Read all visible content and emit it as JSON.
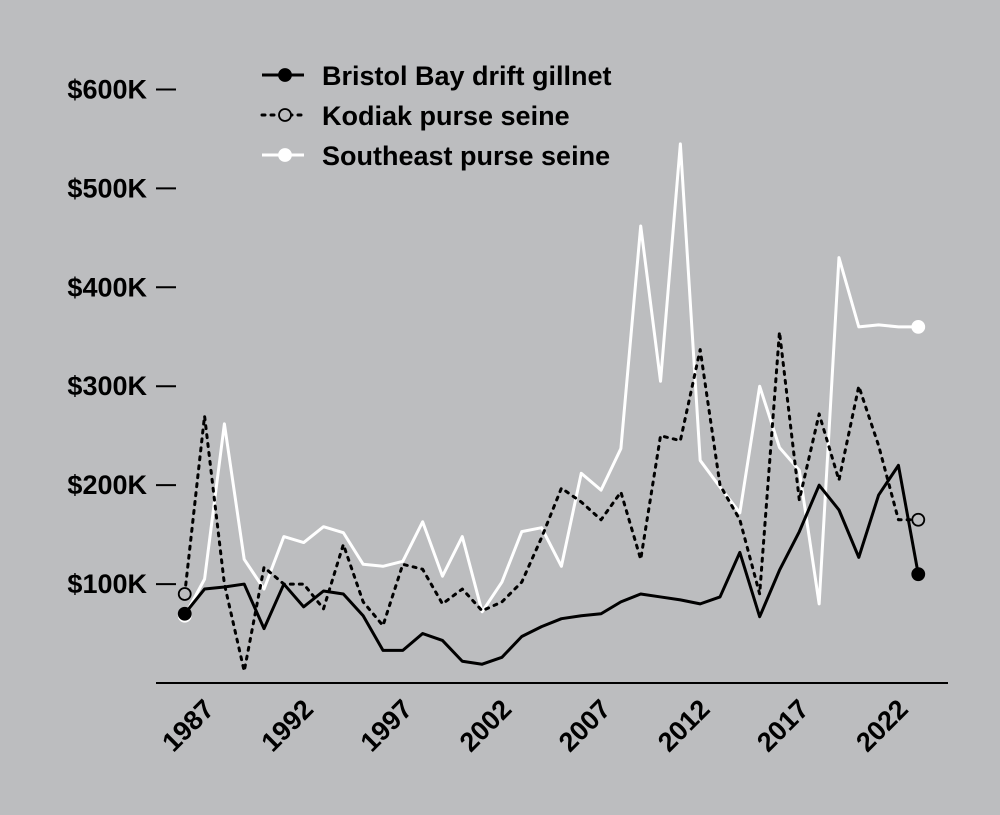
{
  "chart_data": {
    "type": "line",
    "title": "",
    "xlabel": "",
    "ylabel": "",
    "x": [
      1986,
      1987,
      1988,
      1989,
      1990,
      1991,
      1992,
      1993,
      1994,
      1995,
      1996,
      1997,
      1998,
      1999,
      2000,
      2001,
      2002,
      2003,
      2004,
      2005,
      2006,
      2007,
      2008,
      2009,
      2010,
      2011,
      2012,
      2013,
      2014,
      2015,
      2016,
      2017,
      2018,
      2019,
      2020,
      2021,
      2022,
      2023
    ],
    "x_ticks": [
      1987,
      1992,
      1997,
      2002,
      2007,
      2012,
      2017,
      2022
    ],
    "x_tick_labels": [
      "1987",
      "1992",
      "1997",
      "2002",
      "2007",
      "2012",
      "2017",
      "2022"
    ],
    "y_ticks": [
      100000,
      200000,
      300000,
      400000,
      500000,
      600000
    ],
    "y_tick_labels": [
      "$100K",
      "$200K",
      "$300K",
      "$400K",
      "$500K",
      "$600K"
    ],
    "ylim": [
      0,
      650000
    ],
    "xlim": [
      1984.5,
      2024.5
    ],
    "legend_position": "top-left",
    "series": [
      {
        "name": "Bristol Bay drift gillnet",
        "color": "#000000",
        "style": "solid",
        "values": [
          70000,
          95000,
          97000,
          100000,
          55000,
          100000,
          77000,
          93000,
          90000,
          68000,
          33000,
          33000,
          50000,
          43000,
          22000,
          19000,
          26000,
          47000,
          57000,
          65000,
          68000,
          70000,
          82000,
          90000,
          87000,
          84000,
          80000,
          87000,
          132000,
          67000,
          114000,
          153000,
          200000,
          175000,
          127000,
          190000,
          220000,
          110000
        ]
      },
      {
        "name": "Kodiak purse seine",
        "color": "#000000",
        "style": "dotted",
        "values": [
          90000,
          270000,
          100000,
          12000,
          117000,
          100000,
          100000,
          75000,
          140000,
          82000,
          58000,
          120000,
          115000,
          80000,
          95000,
          73000,
          82000,
          102000,
          147000,
          197000,
          183000,
          165000,
          193000,
          125000,
          250000,
          245000,
          337000,
          200000,
          165000,
          90000,
          355000,
          185000,
          272000,
          205000,
          300000,
          240000,
          165000,
          165000
        ]
      },
      {
        "name": "Southeast purse seine",
        "color": "#ffffff",
        "style": "solid",
        "values": [
          68000,
          105000,
          262000,
          125000,
          95000,
          148000,
          142000,
          158000,
          152000,
          120000,
          118000,
          123000,
          163000,
          108000,
          148000,
          72000,
          102000,
          153000,
          157000,
          118000,
          212000,
          195000,
          237000,
          462000,
          305000,
          545000,
          225000,
          198000,
          172000,
          300000,
          238000,
          215000,
          80000,
          430000,
          360000,
          362000,
          360000,
          360000
        ]
      }
    ]
  }
}
